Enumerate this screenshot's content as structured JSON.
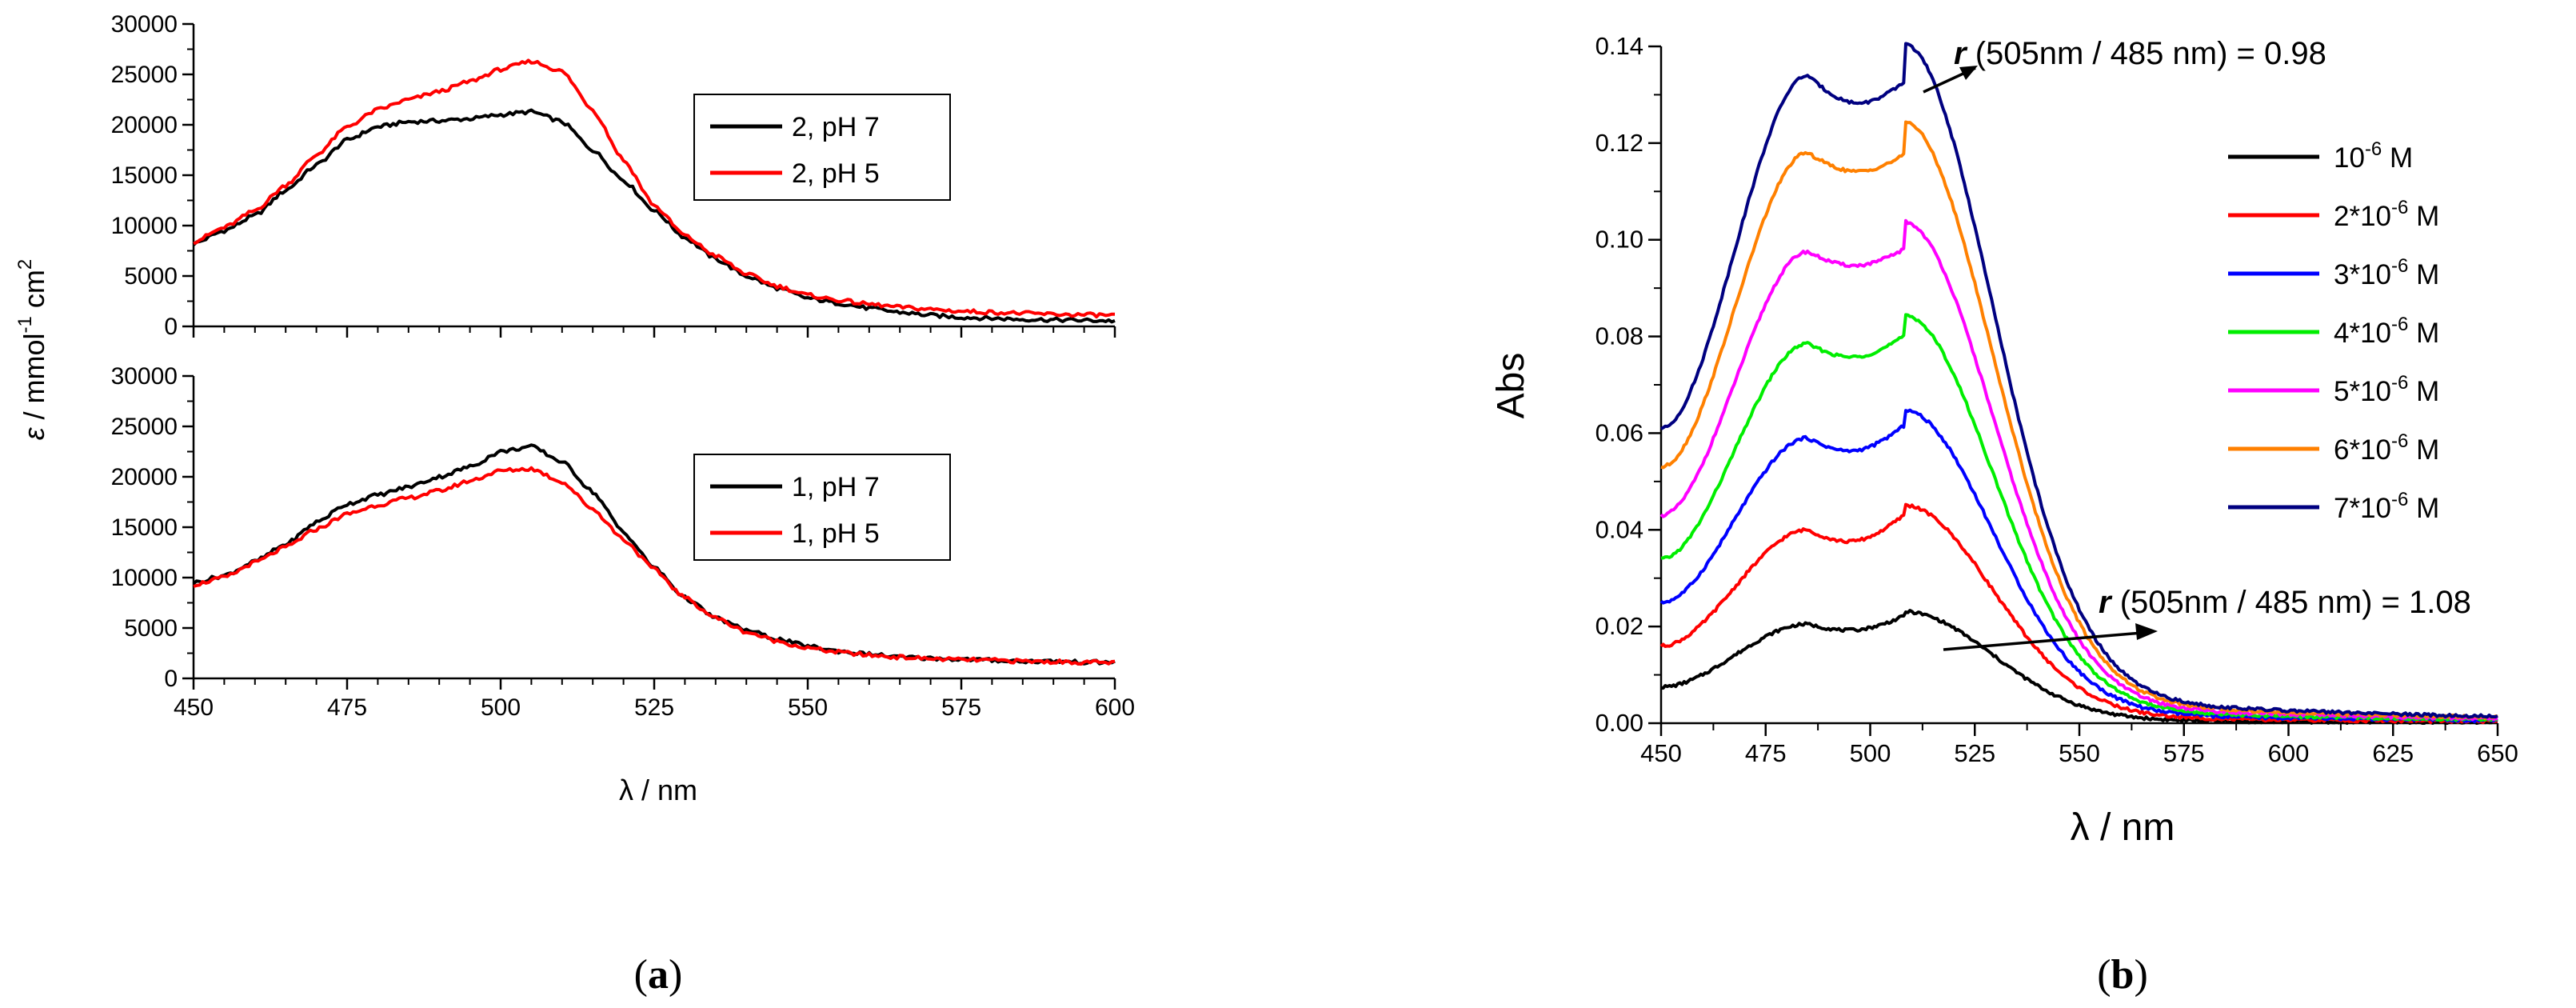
{
  "chart_data": [
    {
      "type": "line",
      "panel_label": "a",
      "xlabel": "λ / nm",
      "ylabel": {
        "symbol": "ε",
        "unit1": "mmol",
        "exp1": "-1",
        "unit2": "cm",
        "exp2": "2"
      },
      "xlim": [
        450,
        600
      ],
      "xticks": [
        "450",
        "475",
        "500",
        "525",
        "550",
        "575",
        "600"
      ],
      "subplots": [
        {
          "name": "top",
          "ylim": [
            0,
            30000
          ],
          "yticks": [
            "0",
            "5000",
            "10000",
            "15000",
            "20000",
            "25000",
            "30000"
          ],
          "legend": "top-right",
          "series": [
            {
              "name": "2, pH 7",
              "color": "#000000",
              "x": [
                450,
                455,
                460,
                465,
                470,
                475,
                480,
                485,
                490,
                495,
                500,
                505,
                510,
                515,
                520,
                525,
                530,
                535,
                540,
                545,
                550,
                555,
                560,
                565,
                570,
                575,
                580,
                585,
                590,
                595,
                600
              ],
              "y": [
                8200,
                9500,
                11000,
                13500,
                16000,
                18500,
                19800,
                20300,
                20400,
                20600,
                21000,
                21300,
                20300,
                17500,
                14500,
                11500,
                8800,
                6700,
                5000,
                3800,
                2800,
                2300,
                1800,
                1400,
                1100,
                900,
                800,
                700,
                650,
                600,
                550
              ]
            },
            {
              "name": "2, pH 5",
              "color": "#ff0000",
              "x": [
                450,
                455,
                460,
                465,
                470,
                475,
                480,
                485,
                490,
                495,
                500,
                505,
                510,
                515,
                520,
                525,
                530,
                535,
                540,
                545,
                550,
                555,
                560,
                565,
                570,
                575,
                580,
                585,
                590,
                595,
                600
              ],
              "y": [
                8400,
                9800,
                11500,
                14000,
                17000,
                19800,
                21500,
                22500,
                23300,
                24300,
                25500,
                26300,
                25300,
                21500,
                16500,
                12000,
                9000,
                7000,
                5200,
                4000,
                3100,
                2600,
                2200,
                1900,
                1700,
                1500,
                1400,
                1300,
                1200,
                1150,
                1100
              ]
            }
          ]
        },
        {
          "name": "bottom",
          "ylim": [
            0,
            30000
          ],
          "yticks": [
            "0",
            "5000",
            "10000",
            "15000",
            "20000",
            "25000",
            "30000"
          ],
          "legend": "right",
          "series": [
            {
              "name": "1, pH 7",
              "color": "#000000",
              "x": [
                450,
                455,
                460,
                465,
                470,
                475,
                480,
                485,
                490,
                495,
                500,
                505,
                510,
                515,
                520,
                525,
                530,
                535,
                540,
                545,
                550,
                555,
                560,
                565,
                570,
                575,
                580,
                585,
                590,
                595,
                600
              ],
              "y": [
                9500,
                10200,
                11600,
                13300,
                15500,
                17300,
                18200,
                19000,
                20000,
                21000,
                22500,
                23000,
                21500,
                18500,
                14500,
                11000,
                8000,
                6000,
                4800,
                3900,
                3200,
                2700,
                2400,
                2100,
                2000,
                1900,
                1800,
                1700,
                1700,
                1600,
                1600
              ]
            },
            {
              "name": "1, pH 5",
              "color": "#ff0000",
              "x": [
                450,
                455,
                460,
                465,
                470,
                475,
                480,
                485,
                490,
                495,
                500,
                505,
                510,
                515,
                520,
                525,
                530,
                535,
                540,
                545,
                550,
                555,
                560,
                565,
                570,
                575,
                580,
                585,
                590,
                595,
                600
              ],
              "y": [
                9300,
                10000,
                11500,
                13000,
                14800,
                16300,
                17200,
                17900,
                18600,
                19600,
                20600,
                20800,
                19500,
                16800,
                13800,
                10800,
                8000,
                6000,
                4600,
                3700,
                3000,
                2600,
                2300,
                2100,
                1950,
                1850,
                1800,
                1700,
                1650,
                1600,
                1550
              ]
            }
          ]
        }
      ]
    },
    {
      "type": "line",
      "panel_label": "b",
      "xlabel": "λ / nm",
      "ylabel": "Abs",
      "xlim": [
        450,
        650
      ],
      "ylim": [
        0,
        0.14
      ],
      "xticks": [
        "450",
        "475",
        "500",
        "525",
        "550",
        "575",
        "600",
        "625",
        "650"
      ],
      "yticks": [
        "0.00",
        "0.02",
        "0.04",
        "0.06",
        "0.08",
        "0.10",
        "0.12",
        "0.14"
      ],
      "legend": "right",
      "series": [
        {
          "name": "10",
          "exp": "-6",
          "suffix": "M",
          "color": "#000000",
          "peak_485": 0.0205,
          "peak_505": 0.0221,
          "start": 0.0075
        },
        {
          "name": "2*10",
          "exp": "-6",
          "suffix": "M",
          "color": "#ff0000",
          "peak_485": 0.04,
          "peak_505": 0.043,
          "start": 0.016
        },
        {
          "name": "3*10",
          "exp": "-6",
          "suffix": "M",
          "color": "#0000ff",
          "peak_485": 0.059,
          "peak_505": 0.0615,
          "start": 0.025
        },
        {
          "name": "4*10",
          "exp": "-6",
          "suffix": "M",
          "color": "#00ee00",
          "peak_485": 0.0785,
          "peak_505": 0.08,
          "start": 0.034
        },
        {
          "name": "5*10",
          "exp": "-6",
          "suffix": "M",
          "color": "#ff00ff",
          "peak_485": 0.0975,
          "peak_505": 0.098,
          "start": 0.043
        },
        {
          "name": "6*10",
          "exp": "-6",
          "suffix": "M",
          "color": "#ff8000",
          "peak_485": 0.118,
          "peak_505": 0.1175,
          "start": 0.053
        },
        {
          "name": "7*10",
          "exp": "-6",
          "suffix": "M",
          "color": "#000080",
          "peak_485": 0.134,
          "peak_505": 0.1325,
          "start": 0.061
        }
      ],
      "annotations": [
        {
          "symbol": "r",
          "text": " (505nm / 485 nm) = 0.98",
          "position": "top"
        },
        {
          "symbol": "r",
          "text": " (505nm / 485 nm) = 1.08",
          "position": "middle-right"
        }
      ]
    }
  ]
}
